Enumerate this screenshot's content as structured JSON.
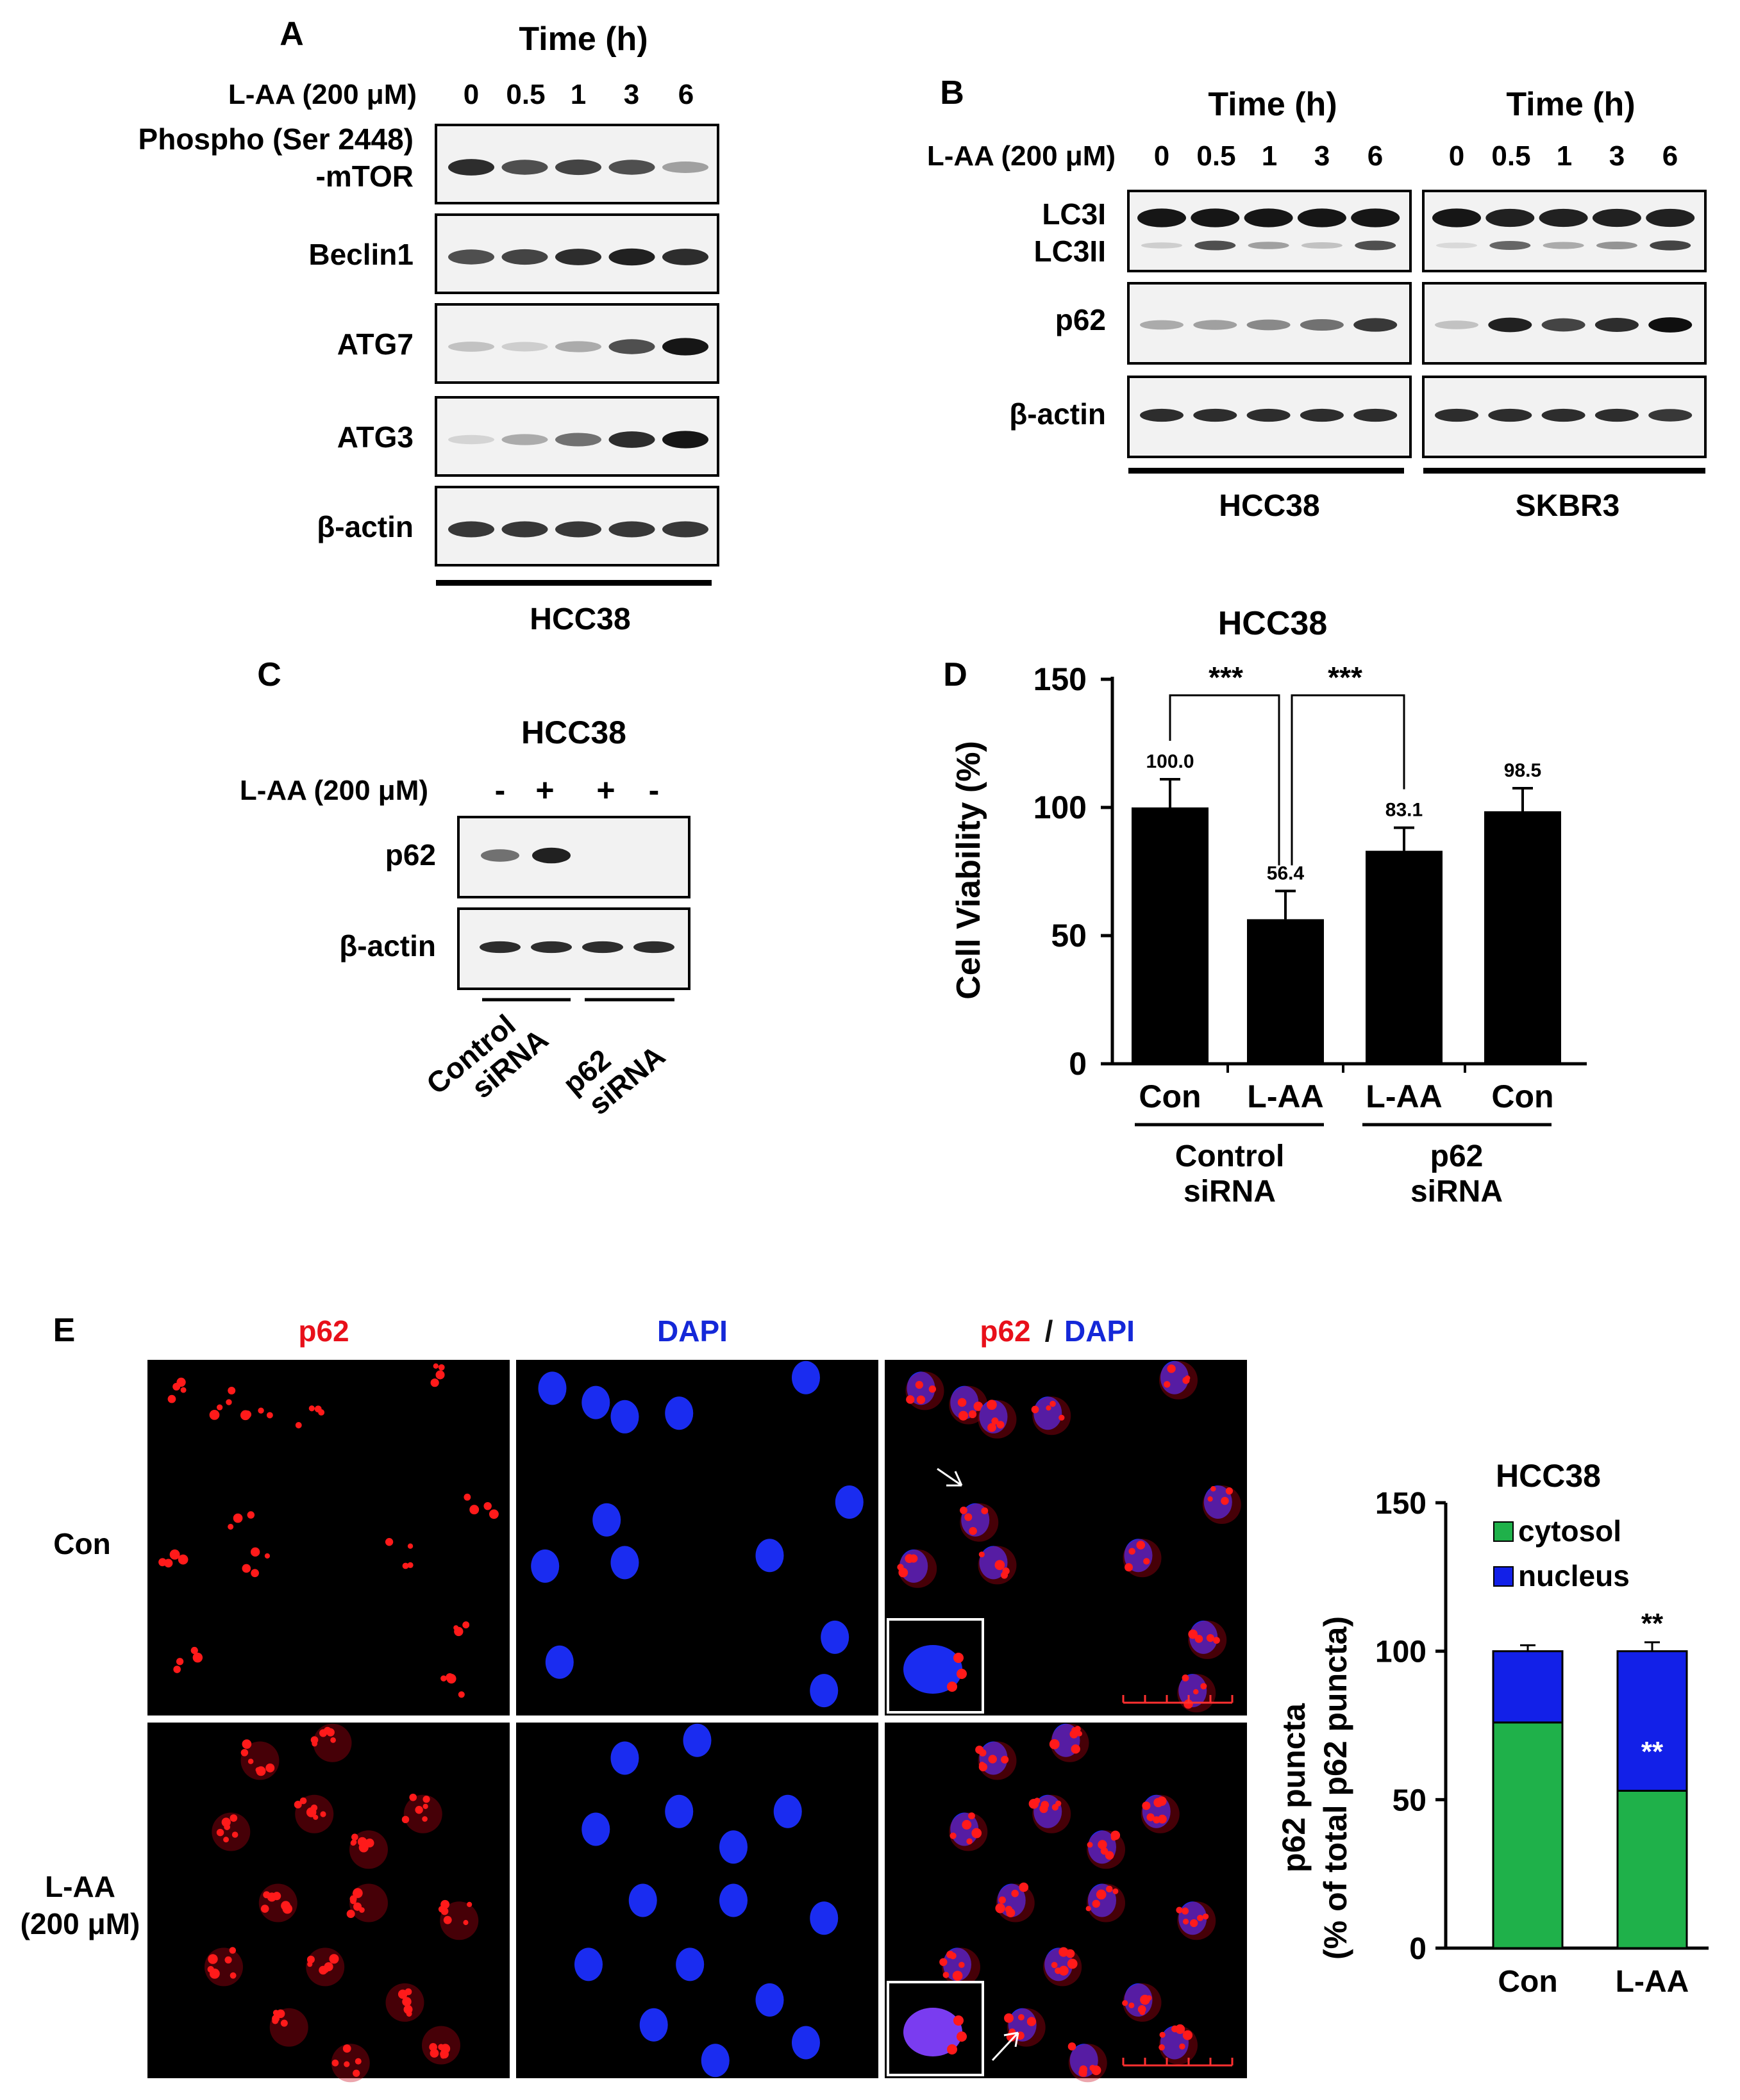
{
  "panelA": {
    "letter": "A",
    "time_title": "Time (h)",
    "treatment": "L-AA (200 μM)",
    "times": [
      "0",
      "0.5",
      "1",
      "3",
      "6"
    ],
    "blots": [
      {
        "label_lines": [
          "Phospho (Ser 2448)",
          "-mTOR"
        ],
        "intensity": [
          0.85,
          0.7,
          0.75,
          0.7,
          0.35
        ]
      },
      {
        "label_lines": [
          "Beclin1"
        ],
        "intensity": [
          0.7,
          0.75,
          0.85,
          0.9,
          0.85
        ]
      },
      {
        "label_lines": [
          "ATG7"
        ],
        "intensity": [
          0.2,
          0.15,
          0.3,
          0.7,
          0.95
        ]
      },
      {
        "label_lines": [
          "ATG3"
        ],
        "intensity": [
          0.12,
          0.3,
          0.55,
          0.85,
          0.95
        ]
      },
      {
        "label_lines": [
          "β-actin"
        ],
        "intensity": [
          0.8,
          0.8,
          0.8,
          0.8,
          0.8
        ]
      }
    ],
    "cell_line": "HCC38"
  },
  "panelB": {
    "letter": "B",
    "treatment": "L-AA (200 μM)",
    "time_title": "Time (h)",
    "times": [
      "0",
      "0.5",
      "1",
      "3",
      "6"
    ],
    "row_labels": {
      "lc3": [
        "LC3I",
        "LC3II"
      ],
      "p62": "p62",
      "actin": "β-actin"
    },
    "cell_lines": [
      "HCC38",
      "SKBR3"
    ],
    "hcc38": {
      "lc3i": [
        0.95,
        0.95,
        0.95,
        0.95,
        0.95
      ],
      "lc3ii": [
        0.15,
        0.7,
        0.35,
        0.2,
        0.7
      ],
      "p62": [
        0.3,
        0.35,
        0.45,
        0.55,
        0.8
      ],
      "actin": [
        0.85,
        0.85,
        0.85,
        0.85,
        0.85
      ]
    },
    "skbr3": {
      "lc3i": [
        0.95,
        0.9,
        0.9,
        0.9,
        0.9
      ],
      "lc3ii": [
        0.1,
        0.6,
        0.3,
        0.4,
        0.75
      ],
      "p62": [
        0.2,
        0.9,
        0.75,
        0.85,
        0.98
      ],
      "actin": [
        0.85,
        0.85,
        0.85,
        0.85,
        0.8
      ]
    }
  },
  "panelC": {
    "letter": "C",
    "title": "HCC38",
    "treatment": "L-AA (200 μM)",
    "signs": [
      "-",
      "+",
      "+",
      "-"
    ],
    "p62_label": "p62",
    "actin_label": "β-actin",
    "p62": [
      0.55,
      0.9,
      0,
      0
    ],
    "actin": [
      0.85,
      0.85,
      0.85,
      0.85
    ],
    "groups": [
      "Control siRNA",
      "p62 siRNA"
    ]
  },
  "panelD": {
    "letter": "D",
    "chart_data": {
      "type": "bar",
      "title": "HCC38",
      "ylabel": "Cell Viability (%)",
      "ylim": [
        0,
        150
      ],
      "yticks": [
        0,
        50,
        100,
        150
      ],
      "categories": [
        "Con",
        "L-AA",
        "L-AA",
        "Con"
      ],
      "values": [
        100.0,
        56.4,
        83.1,
        98.5
      ],
      "value_labels": [
        "100.0",
        "56.4",
        "83.1",
        "98.5"
      ],
      "errors": [
        11,
        11,
        9,
        9
      ],
      "significance": [
        "***",
        "***"
      ],
      "groups": [
        {
          "label": "Control siRNA"
        },
        {
          "label": "p62 siRNA"
        }
      ],
      "grid": false
    }
  },
  "panelE": {
    "letter": "E",
    "columns": {
      "p62": "p62",
      "dapi": "DAPI",
      "slash": "/"
    },
    "rows": [
      "Con",
      "L-AA (200 μM)"
    ],
    "chart_data": {
      "type": "bar",
      "stacked": true,
      "title": "HCC38",
      "ylabel": "p62 puncta",
      "ylabel2": "(% of total p62 puncta)",
      "ylim": [
        0,
        150
      ],
      "yticks": [
        0,
        50,
        100,
        150
      ],
      "categories": [
        "Con",
        "L-AA"
      ],
      "series": [
        {
          "name": "cytosol",
          "values": [
            76,
            53
          ],
          "errors": [
            2,
            3
          ],
          "color": "#1fb14a"
        },
        {
          "name": "nucleus",
          "values": [
            24,
            47
          ],
          "errors": [
            2,
            3
          ],
          "color": "#1220e8"
        }
      ],
      "annotations": [
        "**",
        "**"
      ],
      "legend": "top-left"
    }
  }
}
